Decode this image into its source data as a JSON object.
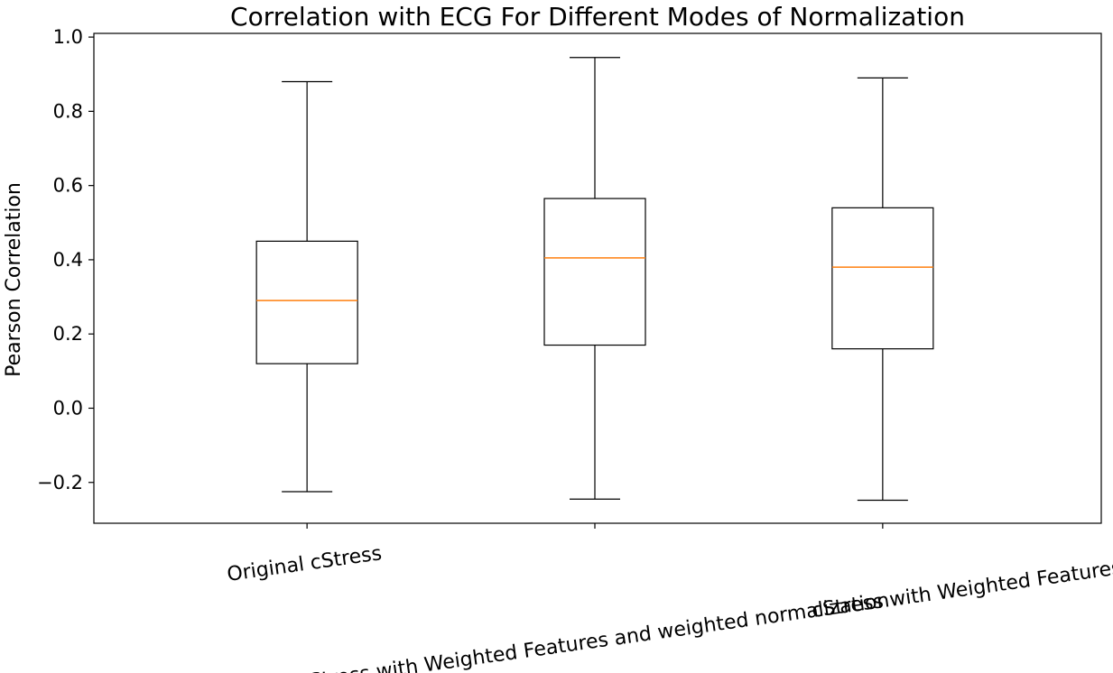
{
  "chart_data": {
    "type": "box",
    "title": "Correlation with ECG For Different Modes of Normalization",
    "ylabel": "Pearson Correlation",
    "xlabel": "",
    "ylim": [
      -0.31,
      1.01
    ],
    "yticks": [
      -0.2,
      0.0,
      0.2,
      0.4,
      0.6,
      0.8,
      1.0
    ],
    "ytick_labels": [
      "−0.2",
      "0.0",
      "0.2",
      "0.4",
      "0.6",
      "0.8",
      "1.0"
    ],
    "categories": [
      "Original cStress",
      "cStress with Weighted Features and weighted normalization",
      "cStress with Weighted Features"
    ],
    "boxes": [
      {
        "whisker_low": -0.225,
        "q1": 0.12,
        "median": 0.29,
        "q3": 0.45,
        "whisker_high": 0.88
      },
      {
        "whisker_low": -0.245,
        "q1": 0.17,
        "median": 0.405,
        "q3": 0.565,
        "whisker_high": 0.945
      },
      {
        "whisker_low": -0.248,
        "q1": 0.16,
        "median": 0.38,
        "q3": 0.54,
        "whisker_high": 0.89
      }
    ],
    "grid": false,
    "colors": {
      "box": "#000000",
      "median": "#ff7f0e"
    }
  }
}
